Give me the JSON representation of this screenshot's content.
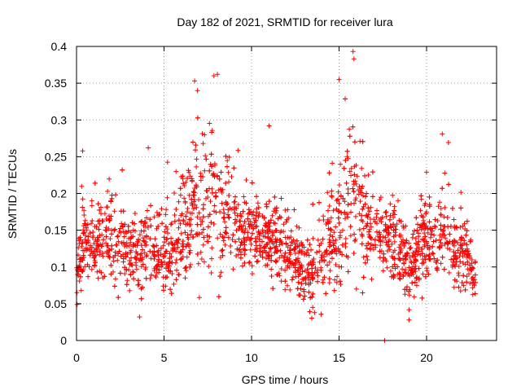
{
  "chart_data": {
    "type": "scatter",
    "title": "Day 182 of 2021, SRMTID for receiver lura",
    "xlabel": "GPS time / hours",
    "ylabel": "SRMTID / TECUs",
    "xlim": [
      0,
      24
    ],
    "ylim": [
      0,
      0.4
    ],
    "x_ticks": [
      0,
      5,
      10,
      15,
      20
    ],
    "x_tick_labels": [
      "0",
      "5",
      "10",
      "15",
      "20"
    ],
    "y_ticks": [
      0,
      0.05,
      0.1,
      0.15,
      0.2,
      0.25,
      0.3,
      0.35,
      0.4
    ],
    "y_tick_labels": [
      "0",
      "0.05",
      "0.1",
      "0.15",
      "0.2",
      "0.25",
      "0.3",
      "0.35",
      "0.4"
    ],
    "grid": true,
    "marker": "plus",
    "color": "#ff0000",
    "series": [
      {
        "name": "SRMTID",
        "note": "dense cloud of several thousand '+' points from 0 to ~22.8 h; representative envelope (hour, typical median, upper spread) used to regenerate scatter",
        "x": [
          0.0,
          0.2,
          0.5,
          1.0,
          1.5,
          2.0,
          2.5,
          3.0,
          3.5,
          4.0,
          4.5,
          5.0,
          5.5,
          6.0,
          6.5,
          7.0,
          7.5,
          8.0,
          8.5,
          9.0,
          9.5,
          10.0,
          10.5,
          11.0,
          11.5,
          12.0,
          12.5,
          13.0,
          13.5,
          14.0,
          14.5,
          15.0,
          15.5,
          16.0,
          16.5,
          17.0,
          17.5,
          18.0,
          18.5,
          19.0,
          19.5,
          20.0,
          20.5,
          21.0,
          21.5,
          22.0,
          22.5,
          22.8
        ],
        "median": [
          0.08,
          0.12,
          0.14,
          0.13,
          0.14,
          0.14,
          0.13,
          0.12,
          0.12,
          0.13,
          0.13,
          0.12,
          0.12,
          0.15,
          0.17,
          0.18,
          0.19,
          0.18,
          0.17,
          0.16,
          0.15,
          0.15,
          0.14,
          0.14,
          0.13,
          0.12,
          0.11,
          0.1,
          0.1,
          0.12,
          0.14,
          0.16,
          0.18,
          0.19,
          0.16,
          0.14,
          0.15,
          0.14,
          0.12,
          0.09,
          0.12,
          0.14,
          0.15,
          0.15,
          0.12,
          0.12,
          0.1,
          0.08
        ],
        "spread": [
          0.03,
          0.05,
          0.04,
          0.05,
          0.05,
          0.06,
          0.05,
          0.05,
          0.05,
          0.06,
          0.05,
          0.05,
          0.05,
          0.06,
          0.08,
          0.09,
          0.09,
          0.08,
          0.06,
          0.05,
          0.05,
          0.05,
          0.05,
          0.05,
          0.05,
          0.04,
          0.04,
          0.04,
          0.05,
          0.05,
          0.06,
          0.08,
          0.09,
          0.1,
          0.06,
          0.05,
          0.05,
          0.05,
          0.05,
          0.04,
          0.05,
          0.05,
          0.06,
          0.06,
          0.05,
          0.05,
          0.04,
          0.03
        ],
        "notable_points": [
          {
            "x": 0.35,
            "y": 0.258
          },
          {
            "x": 4.1,
            "y": 0.262
          },
          {
            "x": 6.75,
            "y": 0.353
          },
          {
            "x": 7.85,
            "y": 0.36
          },
          {
            "x": 8.05,
            "y": 0.362
          },
          {
            "x": 11.0,
            "y": 0.292
          },
          {
            "x": 15.0,
            "y": 0.355
          },
          {
            "x": 15.8,
            "y": 0.393
          },
          {
            "x": 15.85,
            "y": 0.383
          },
          {
            "x": 20.9,
            "y": 0.281
          },
          {
            "x": 17.6,
            "y": 0.0
          },
          {
            "x": 19.0,
            "y": 0.028
          },
          {
            "x": 3.6,
            "y": 0.032
          },
          {
            "x": 13.6,
            "y": 0.038
          }
        ]
      }
    ]
  }
}
